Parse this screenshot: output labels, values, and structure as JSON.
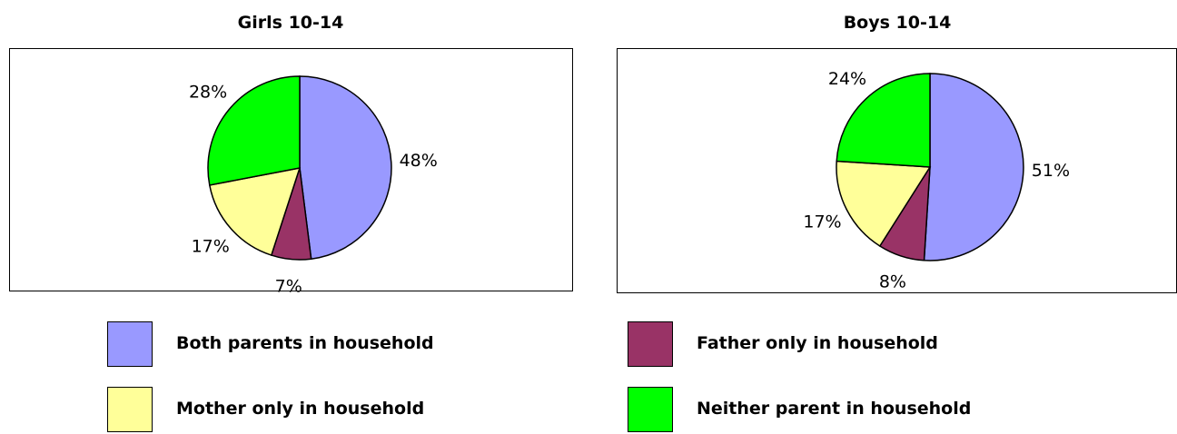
{
  "colors": {
    "both": "#9999FF",
    "father": "#993366",
    "mother": "#FFFF99",
    "neither": "#00FF00"
  },
  "legend": {
    "both": "Both parents in household",
    "father": "Father only in household",
    "mother": "Mother only in household",
    "neither": "Neither parent in household"
  },
  "chart_data": [
    {
      "type": "pie",
      "title": "Girls 10-14",
      "categories": [
        "Both parents in household",
        "Father only in household",
        "Mother only in household",
        "Neither parent in household"
      ],
      "values": [
        48,
        7,
        17,
        28
      ],
      "labels": [
        "48%",
        "7%",
        "17%",
        "28%"
      ]
    },
    {
      "type": "pie",
      "title": "Boys 10-14",
      "categories": [
        "Both parents in household",
        "Father only in household",
        "Mother only in household",
        "Neither parent in household"
      ],
      "values": [
        51,
        8,
        17,
        24
      ],
      "labels": [
        "51%",
        "8%",
        "17%",
        "24%"
      ]
    }
  ]
}
